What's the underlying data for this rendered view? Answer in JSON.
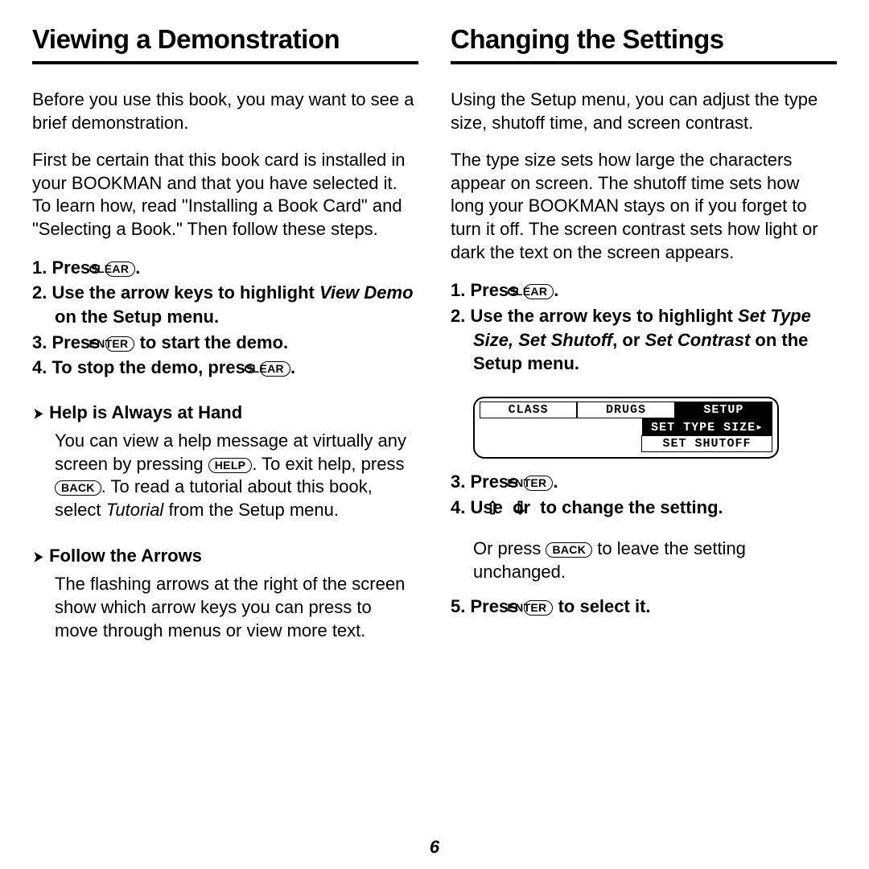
{
  "page_number": "6",
  "left": {
    "title": "Viewing a Demonstration",
    "intro1": "Before you use this book, you may want to see a brief demonstration.",
    "intro2": "First be certain that this book card is installed in your BOOKMAN and that you have selected it. To learn how, read \"Installing a Book Card\" and \"Selecting a Book.\" Then follow these steps.",
    "step1_a": "1. Press ",
    "step1_key": "CLEAR",
    "step1_b": ".",
    "step2_a": "2. Use the arrow keys to highlight ",
    "step2_em": "View Demo",
    "step2_b": " on the Setup menu.",
    "step3_a": "3. Press ",
    "step3_key": "ENTER",
    "step3_b": " to start the demo.",
    "step4_a": "4. To stop the demo, press ",
    "step4_key": "CLEAR",
    "step4_b": ".",
    "tip1_title": "Help is Always at Hand",
    "tip1_a": "You can view a help message at virtually any screen by pressing ",
    "tip1_key1": "HELP",
    "tip1_b": ". To exit help, press ",
    "tip1_key2": "BACK",
    "tip1_c": ". To read a tutorial about this book, select ",
    "tip1_em": "Tutorial",
    "tip1_d": " from the Setup menu.",
    "tip2_title": "Follow the Arrows",
    "tip2_body": "The flashing arrows at the right of the screen show which arrow keys you can press to move through menus or view more text."
  },
  "right": {
    "title": "Changing the Settings",
    "intro1": "Using the Setup menu, you can adjust the type size, shutoff time, and screen contrast.",
    "intro2": "The type size sets how large the characters appear on screen. The shutoff time sets how long your BOOKMAN stays on if you forget to turn it off. The screen contrast sets how light or dark the text on the screen appears.",
    "step1_a": "1. Press ",
    "step1_key": "CLEAR",
    "step1_b": ".",
    "step2_a": "2. Use the arrow keys to highlight ",
    "step2_em": "Set Type Size, Set Shutoff",
    "step2_b": ", or ",
    "step2_em2": "Set Contrast",
    "step2_c": " on the Setup menu.",
    "lcd": {
      "r1c1": "CLASS",
      "r1c2": "DRUGS",
      "r1c3": "SETUP",
      "r2c3": "SET TYPE SIZE▸",
      "r3c3": "SET SHUTOFF"
    },
    "step3_a": "3. Press ",
    "step3_key": "ENTER",
    "step3_b": ".",
    "step4_a": "4. Use ",
    "step4_mid": "or ",
    "step4_b": " to change the setting.",
    "step4_sub_a": "Or press ",
    "step4_sub_key": "BACK",
    "step4_sub_b": " to leave the setting unchanged.",
    "step5_a": "5. Press ",
    "step5_key": "ENTER",
    "step5_b": " to select it."
  }
}
